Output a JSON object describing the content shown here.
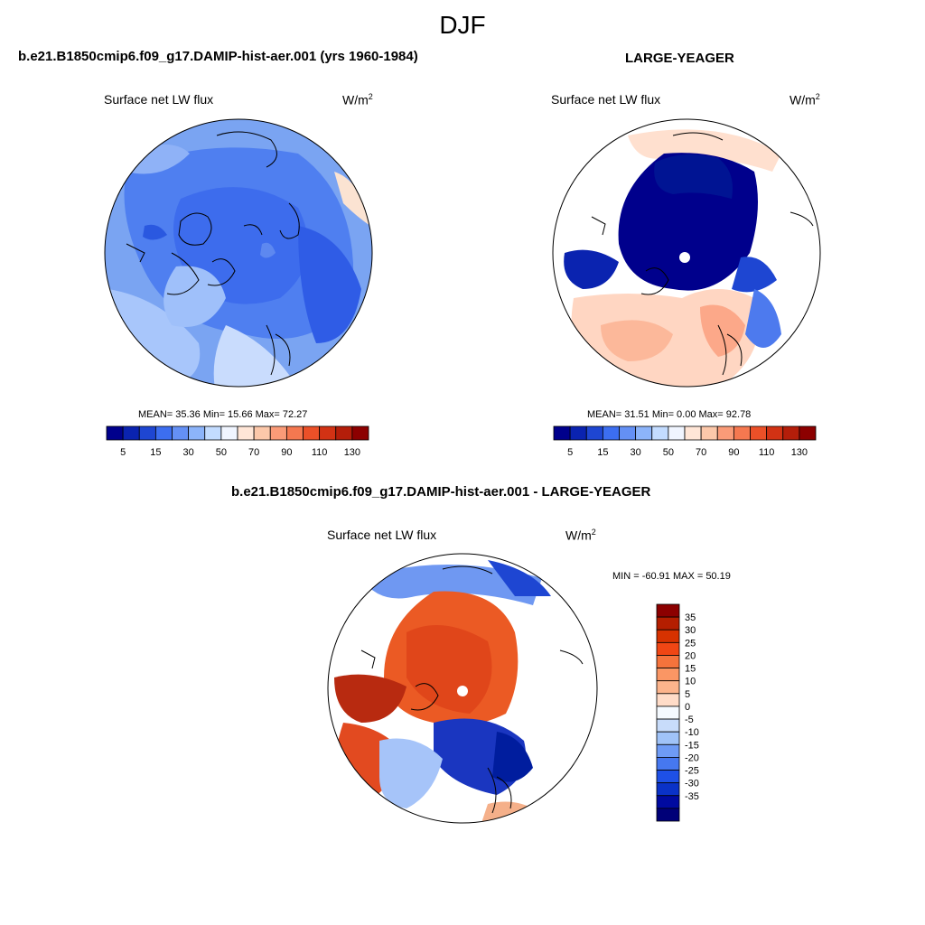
{
  "season": "DJF",
  "panels": [
    {
      "title": "b.e21.B1850cmip6.f09_g17.DAMIP-hist-aer.001 (yrs 1960-1984)",
      "variable": "Surface net LW flux",
      "units": "W/m",
      "units_sup": "2",
      "stats_text": "MEAN=  35.36  Min=  15.66  Max=  72.27"
    },
    {
      "title": "LARGE-YEAGER",
      "variable": "Surface net LW flux",
      "units": "W/m",
      "units_sup": "2",
      "stats_text": "MEAN=  31.51  Min=   0.00  Max=  92.78"
    },
    {
      "title": "b.e21.B1850cmip6.f09_g17.DAMIP-hist-aer.001 - LARGE-YEAGER",
      "variable": "Surface net LW flux",
      "units": "W/m",
      "units_sup": "2",
      "stats_text": "MIN = -60.91 MAX =  50.19"
    }
  ],
  "colorbar_top": {
    "colors": [
      "#00008c",
      "#0a23b0",
      "#1e46d2",
      "#3c6ef0",
      "#6490f5",
      "#8cb4fa",
      "#c3dcff",
      "#f0f5ff",
      "#ffe6d7",
      "#fcc8aa",
      "#fa9b78",
      "#f57850",
      "#eb5028",
      "#d23214",
      "#b41e0a",
      "#8c0000"
    ],
    "tick_labels": [
      "5",
      "15",
      "30",
      "50",
      "70",
      "90",
      "110",
      "130"
    ]
  },
  "colorbar_diff": {
    "colors": [
      "#8c0000",
      "#b41e00",
      "#d73200",
      "#f04614",
      "#f5733c",
      "#fa9664",
      "#fcb48c",
      "#ffdcc8",
      "#f5faff",
      "#c8dcfa",
      "#a0c3f8",
      "#6e9bf5",
      "#4678f0",
      "#1e50e6",
      "#0a32c8",
      "#000aa0",
      "#000078"
    ],
    "tick_labels": [
      "35",
      "30",
      "25",
      "20",
      "15",
      "10",
      "5",
      "0",
      "-5",
      "-10",
      "-15",
      "-20",
      "-25",
      "-30",
      "-35"
    ]
  }
}
